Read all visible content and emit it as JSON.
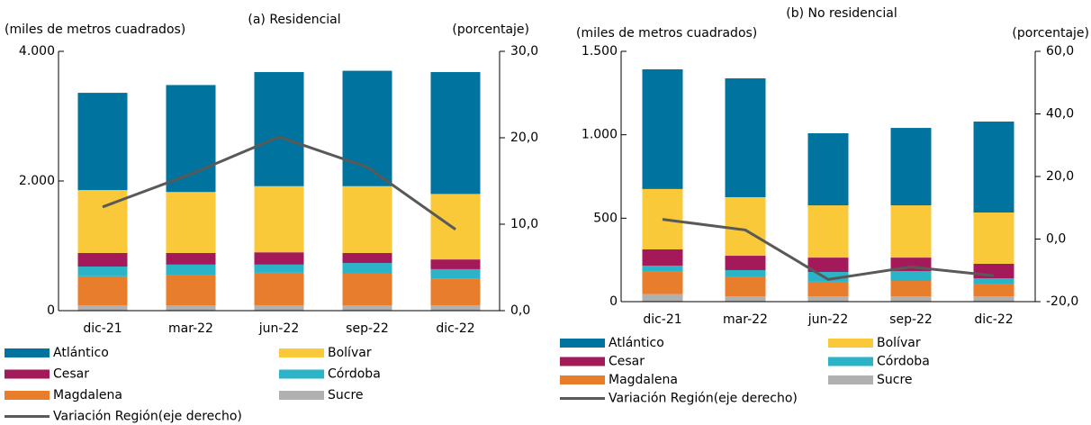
{
  "chart_data": [
    {
      "type": "bar",
      "title": "(a) Residencial",
      "y_label": "(miles de metros cuadrados)",
      "y2_label": "(porcentaje)",
      "categories": [
        "dic-21",
        "mar-22",
        "jun-22",
        "sep-22",
        "dic-22"
      ],
      "ylim": [
        0,
        4000
      ],
      "yticks": [
        0,
        {
          "value": 2000,
          "label": "2.000"
        },
        {
          "value": 4000,
          "label": "4.000"
        }
      ],
      "y2lim": [
        0,
        30
      ],
      "y2ticks": [
        {
          "value": 0,
          "label": "0,0"
        },
        {
          "value": 10,
          "label": "10,0"
        },
        {
          "value": 20,
          "label": "20,0"
        },
        {
          "value": 30,
          "label": "30,0"
        }
      ],
      "series": [
        {
          "name": "Atlántico",
          "color": "#00739e",
          "values": [
            1500,
            1650,
            1760,
            1780,
            1880
          ]
        },
        {
          "name": "Bolívar",
          "color": "#f9c93a",
          "values": [
            970,
            940,
            1020,
            1030,
            1010
          ]
        },
        {
          "name": "Cesar",
          "color": "#a4195a",
          "values": [
            210,
            180,
            190,
            155,
            150
          ]
        },
        {
          "name": "Córdoba",
          "color": "#2bb3c8",
          "values": [
            150,
            155,
            125,
            165,
            150
          ]
        },
        {
          "name": "Magdalena",
          "color": "#e87d2b",
          "values": [
            450,
            475,
            505,
            490,
            410
          ]
        },
        {
          "name": "Sucre",
          "color": "#b0b0b0",
          "values": [
            80,
            80,
            80,
            80,
            80
          ]
        },
        {
          "name": "Variación Región(eje derecho)",
          "color": "#595959",
          "type": "line",
          "axis": "y2",
          "values": [
            12.0,
            15.8,
            20.1,
            16.6,
            9.4
          ]
        }
      ]
    },
    {
      "type": "bar",
      "title": "(b) No residencial",
      "y_label": "(miles de metros cuadrados)",
      "y2_label": "(porcentaje)",
      "categories": [
        "dic-21",
        "mar-22",
        "jun-22",
        "sep-22",
        "dic-22"
      ],
      "ylim": [
        0,
        1500
      ],
      "yticks": [
        0,
        500,
        {
          "value": 1000,
          "label": "1.000"
        },
        {
          "value": 1500,
          "label": "1.500"
        }
      ],
      "y2lim": [
        -20,
        60
      ],
      "y2ticks": [
        {
          "value": -20,
          "label": "-20,0"
        },
        {
          "value": 0,
          "label": "0,0"
        },
        {
          "value": 20,
          "label": "20,0"
        },
        {
          "value": 40,
          "label": "40,0"
        },
        {
          "value": 60,
          "label": "60,0"
        }
      ],
      "series": [
        {
          "name": "Atlántico",
          "color": "#00739e",
          "values": [
            717,
            712,
            432,
            464,
            545
          ]
        },
        {
          "name": "Bolívar",
          "color": "#f9c93a",
          "values": [
            362,
            351,
            313,
            313,
            307
          ]
        },
        {
          "name": "Cesar",
          "color": "#a4195a",
          "values": [
            97,
            86,
            86,
            81,
            87
          ]
        },
        {
          "name": "Córdoba",
          "color": "#2bb3c8",
          "values": [
            33,
            38,
            59,
            59,
            37
          ]
        },
        {
          "name": "Magdalena",
          "color": "#e87d2b",
          "values": [
            138,
            119,
            87,
            92,
            71
          ]
        },
        {
          "name": "Sucre",
          "color": "#b0b0b0",
          "values": [
            45,
            32,
            32,
            32,
            32
          ]
        },
        {
          "name": "Variación Región(eje derecho)",
          "color": "#595959",
          "type": "line",
          "axis": "y2",
          "values": [
            6.3,
            2.9,
            -12.9,
            -8.9,
            -11.7
          ]
        }
      ]
    }
  ]
}
